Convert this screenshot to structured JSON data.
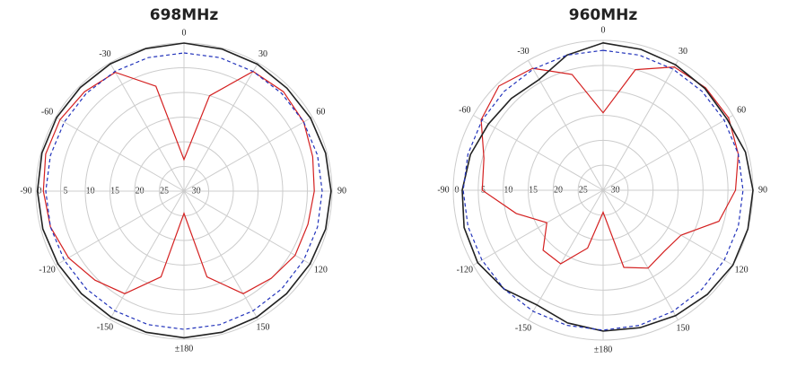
{
  "chart_data": [
    {
      "type": "polar",
      "title": "698MHz",
      "theta": [
        0,
        15,
        30,
        45,
        60,
        75,
        90,
        105,
        120,
        135,
        150,
        165,
        180,
        195,
        210,
        225,
        240,
        255,
        270,
        285,
        300,
        315,
        330,
        345
      ],
      "rlim": [
        -30,
        0
      ],
      "rticks": [
        0,
        -5,
        -10,
        -15,
        -20,
        -25,
        -30
      ],
      "thetaticks": [
        0,
        30,
        60,
        90,
        120,
        150,
        {
          "value": 180,
          "label": "±180"
        },
        {
          "value": 210,
          "label": "-150"
        },
        {
          "value": 240,
          "label": "-120"
        },
        {
          "value": 270,
          "label": "-90"
        },
        {
          "value": 300,
          "label": "-60"
        },
        {
          "value": 330,
          "label": "-30"
        }
      ],
      "grid": true,
      "series": [
        {
          "color": "#d42020",
          "dashed": false,
          "values": [
            -23.6,
            -10,
            -2,
            -1.5,
            -2,
            -3,
            -3.6,
            -4,
            -4,
            -5,
            -6,
            -12,
            -25.5,
            -12,
            -6,
            -4.5,
            -3,
            -2,
            -1.5,
            -1,
            -1,
            -1.5,
            -2.2,
            -8
          ]
        },
        {
          "color": "#222222",
          "dashed": false,
          "values": [
            0,
            -0.2,
            -0.3,
            -0.5,
            -0.4,
            -0.3,
            -0.2,
            -0.3,
            -0.5,
            -0.6,
            -0.5,
            -0.4,
            -0.3,
            -0.4,
            -0.5,
            -0.6,
            -0.5,
            -0.4,
            -0.3,
            -0.2,
            -0.2,
            -0.3,
            -0.2,
            -0.1
          ]
        },
        {
          "color": "#2233bb",
          "dashed": true,
          "values": [
            -2,
            -2,
            -2,
            -2,
            -2,
            -2,
            -2,
            -2,
            -2,
            -2,
            -2,
            -2,
            -2,
            -2,
            -2,
            -2,
            -2,
            -2,
            -2,
            -2,
            -2,
            -2,
            -2,
            -2
          ]
        }
      ]
    },
    {
      "type": "polar",
      "title": "960MHz",
      "theta": [
        0,
        15,
        30,
        45,
        60,
        75,
        90,
        105,
        120,
        135,
        150,
        165,
        180,
        195,
        210,
        225,
        240,
        255,
        270,
        285,
        300,
        315,
        330,
        345
      ],
      "rlim": [
        -30,
        0
      ],
      "rticks": [
        0,
        -5,
        -10,
        -15,
        -20,
        -25,
        -30
      ],
      "thetaticks": [
        0,
        30,
        60,
        90,
        120,
        150,
        {
          "value": 180,
          "label": "±180"
        },
        {
          "value": 210,
          "label": "-150"
        },
        {
          "value": 240,
          "label": "-120"
        },
        {
          "value": 270,
          "label": "-90"
        },
        {
          "value": 300,
          "label": "-60"
        },
        {
          "value": 330,
          "label": "-30"
        }
      ],
      "grid": true,
      "series": [
        {
          "color": "#d42020",
          "dashed": false,
          "values": [
            -14.5,
            -5,
            -1.5,
            -1,
            -1,
            -2,
            -3.5,
            -6,
            -12,
            -12.7,
            -12,
            -14,
            -25.6,
            -18,
            -13,
            -13,
            -17,
            -12,
            -5.8,
            -5.3,
            -1.8,
            -0.5,
            -1.8,
            -6
          ]
        },
        {
          "color": "#222222",
          "dashed": false,
          "values": [
            -0.5,
            -0.8,
            -1,
            -1.2,
            -1.4,
            -0.5,
            0,
            0,
            0,
            -0.5,
            -1,
            -1.5,
            -1.8,
            -2.5,
            -3.5,
            -2,
            -1,
            -1.2,
            -1.8,
            -2.5,
            -3.5,
            -4,
            -4.4,
            -2
          ]
        },
        {
          "color": "#2233bb",
          "dashed": true,
          "values": [
            -2,
            -2,
            -2,
            -2,
            -2,
            -2,
            -2,
            -2,
            -2,
            -2,
            -2,
            -2,
            -2,
            -2,
            -2,
            -2,
            -2,
            -2,
            -2,
            -2,
            -2,
            -2,
            -2,
            -2
          ]
        }
      ]
    }
  ]
}
